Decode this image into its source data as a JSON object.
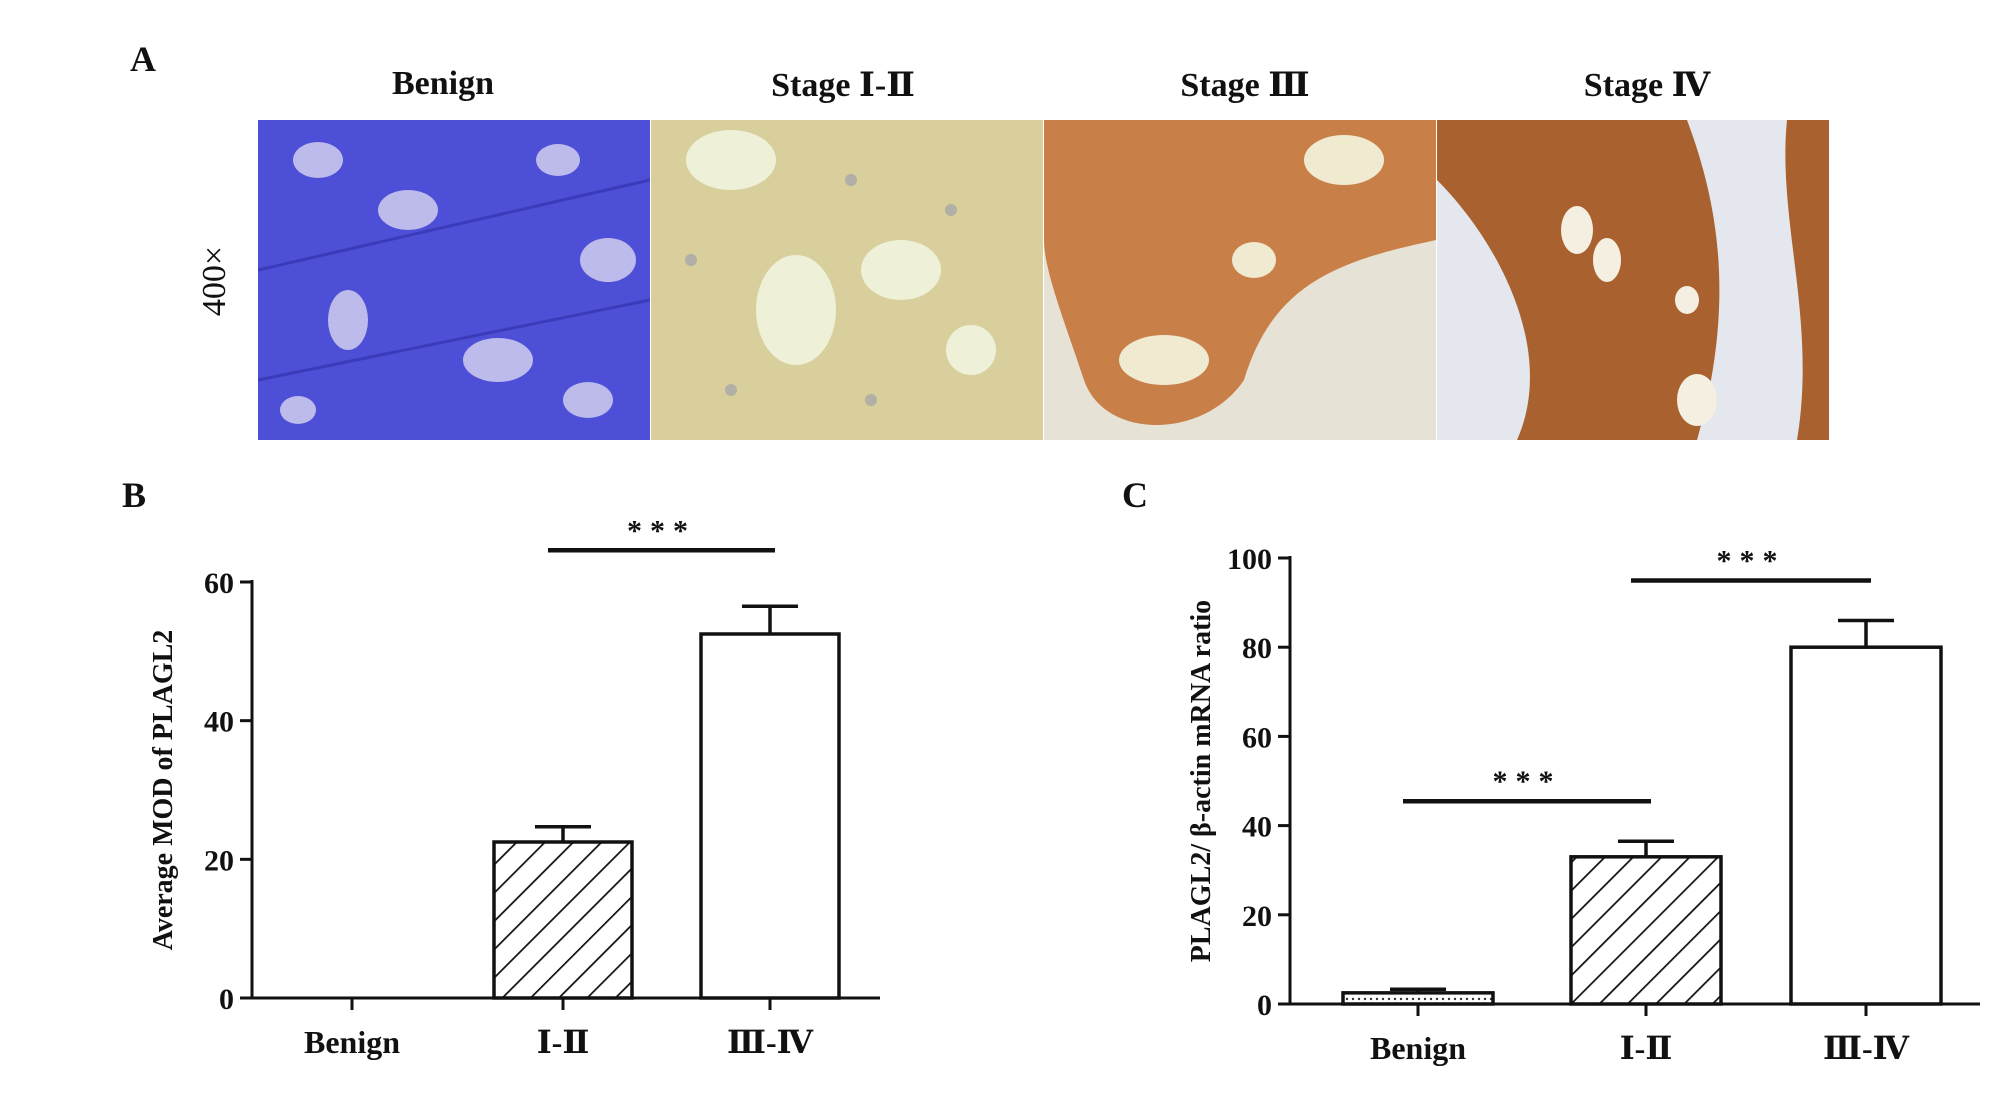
{
  "panel_a": {
    "letter": "A",
    "magnification": "400×",
    "titles": [
      "Benign",
      "Stage Ⅰ-Ⅱ",
      "Stage Ⅲ",
      "Stage Ⅳ"
    ],
    "tissue_colors": [
      "#5a5ae0",
      "#d9c89a",
      "#c98a4f",
      "#b06a3a"
    ]
  },
  "panel_b": {
    "letter": "B"
  },
  "panel_c": {
    "letter": "C"
  },
  "chart_data": [
    {
      "type": "bar",
      "panel": "B",
      "categories": [
        "Benign",
        "Ⅰ-Ⅱ",
        "Ⅲ-Ⅳ"
      ],
      "values": [
        0,
        22.5,
        52.5
      ],
      "errors": [
        0,
        2.2,
        4.0
      ],
      "ylabel": "Average MOD of PLAGL2",
      "ylim": [
        0,
        60
      ],
      "yticks": [
        0,
        20,
        40,
        60
      ],
      "fills": [
        "none",
        "hatch",
        "white"
      ],
      "significance": [
        {
          "from": "Ⅰ-Ⅱ",
          "to": "Ⅲ-Ⅳ",
          "label": "***"
        }
      ]
    },
    {
      "type": "bar",
      "panel": "C",
      "categories": [
        "Benign",
        "Ⅰ-Ⅱ",
        "Ⅲ-Ⅳ"
      ],
      "values": [
        2.5,
        33.0,
        80.0
      ],
      "errors": [
        0.8,
        3.5,
        6.0
      ],
      "ylabel": "PLAGL2/ β-actin mRNA ratio",
      "ylim": [
        0,
        100
      ],
      "yticks": [
        0,
        20,
        40,
        60,
        80,
        100
      ],
      "fills": [
        "dots",
        "hatch",
        "white"
      ],
      "significance": [
        {
          "from": "Benign",
          "to": "Ⅰ-Ⅱ",
          "label": "***"
        },
        {
          "from": "Ⅰ-Ⅱ",
          "to": "Ⅲ-Ⅳ",
          "label": "***"
        }
      ]
    }
  ]
}
